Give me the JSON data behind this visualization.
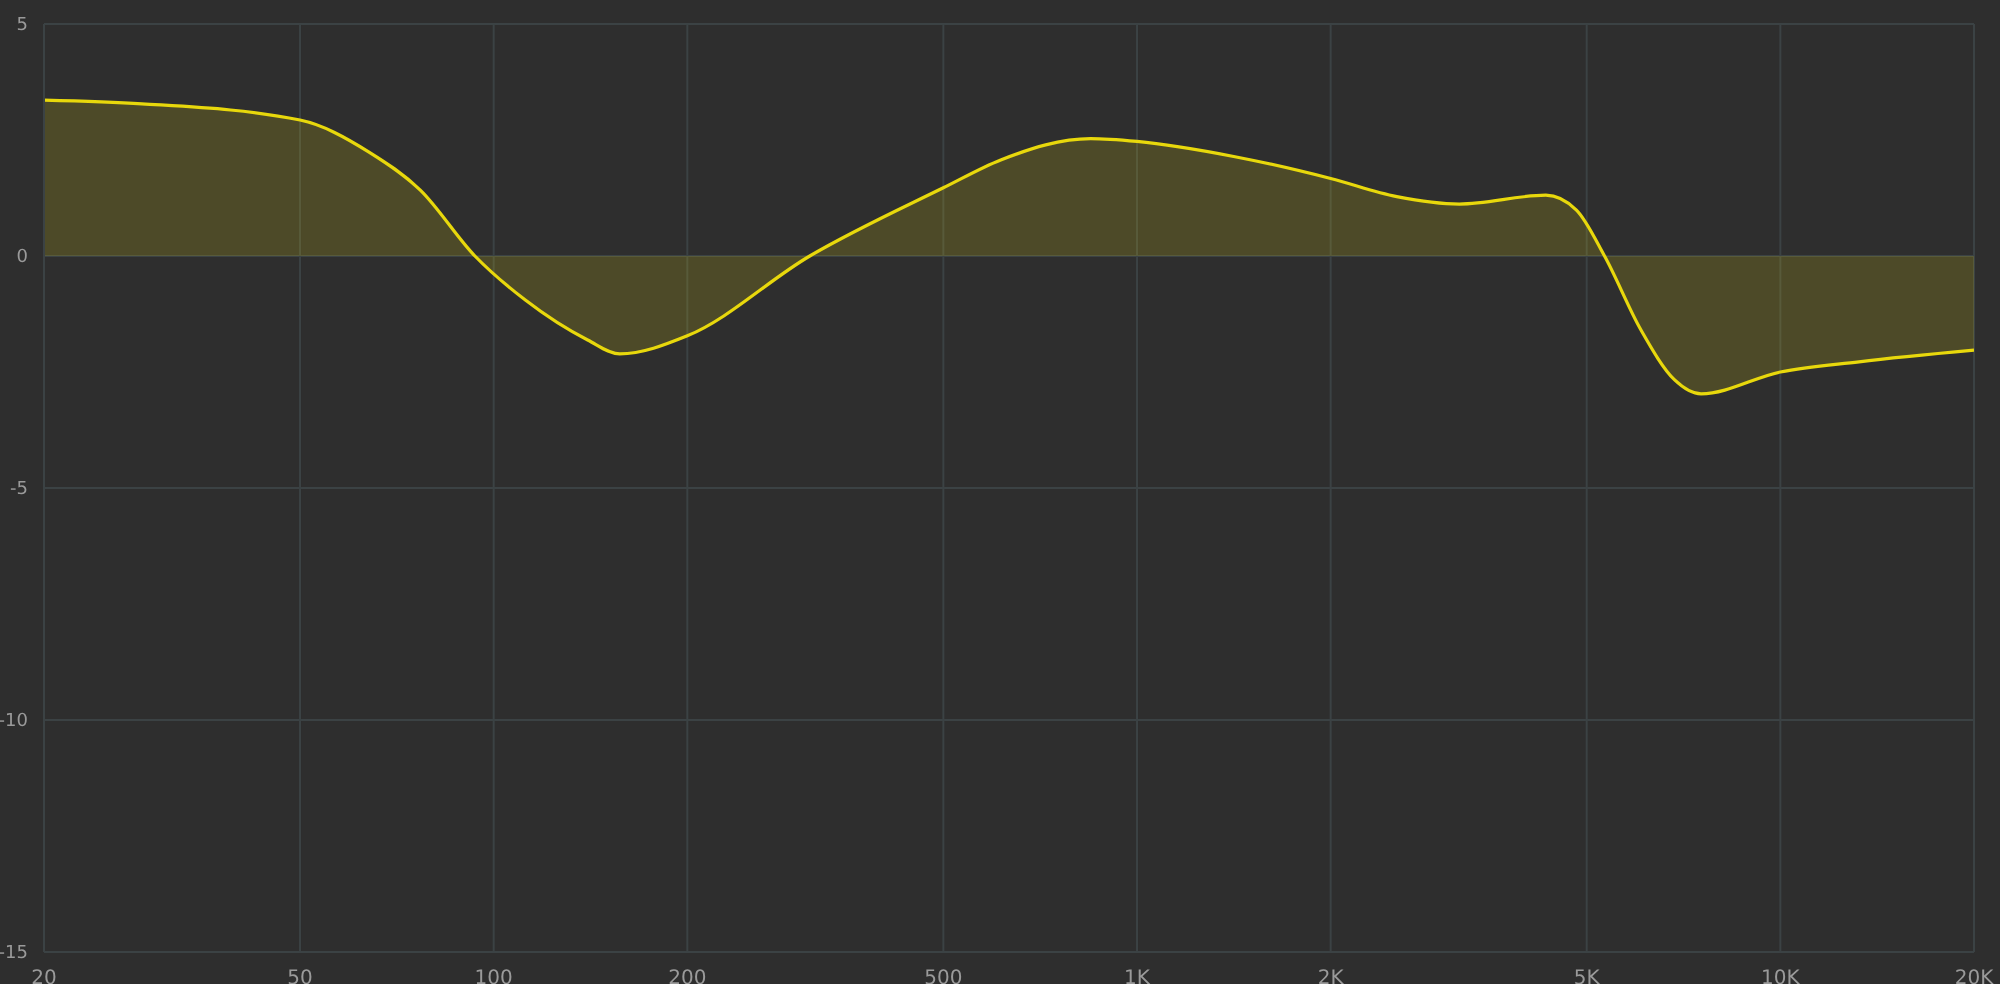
{
  "chart_data": {
    "type": "area",
    "log": "x",
    "x": [
      20,
      28.4,
      50,
      64,
      76.9,
      93.5,
      112,
      140,
      157,
      200,
      310,
      500,
      614,
      847,
      1000,
      1420,
      2000,
      2534,
      3170,
      4320,
      4820,
      5330,
      6070,
      6850,
      7530,
      10000,
      13250,
      20000
    ],
    "series": [
      {
        "color": "#e8d80c",
        "values": [
          3.36,
          3.28,
          2.93,
          2.24,
          1.42,
          0,
          -0.95,
          -1.81,
          -2.11,
          -1.72,
          0,
          1.47,
          2.07,
          2.53,
          2.47,
          2.14,
          1.67,
          1.28,
          1.12,
          1.31,
          0.99,
          0,
          -1.59,
          -2.67,
          -2.97,
          -2.5,
          -2.28,
          -2.03
        ]
      }
    ],
    "xlim": [
      20,
      20000
    ],
    "xticks": [
      20,
      50,
      100,
      200,
      500,
      {
        "value": 1000,
        "label": "1K"
      },
      {
        "value": 2000,
        "label": "2K"
      },
      {
        "value": 5000,
        "label": "5K"
      },
      {
        "value": 10000,
        "label": "10K"
      },
      {
        "value": 20000,
        "label": "20K"
      }
    ],
    "ylim": [
      -15,
      5
    ],
    "yticks": [
      -15,
      -10,
      -5,
      0,
      5
    ],
    "grid": true
  }
}
